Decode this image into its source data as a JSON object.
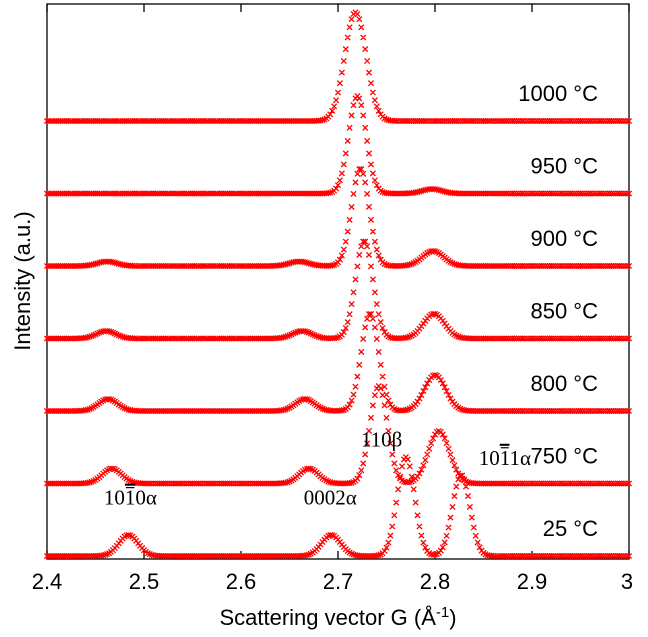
{
  "chart_data": {
    "type": "line",
    "xlabel": "Scattering vector G (Å",
    "xlabel_sup": "-1",
    "xlabel_end": ")",
    "ylabel": "Intensity (a.u.)",
    "xlim": [
      2.4,
      3.0
    ],
    "xticks": [
      "2.4",
      "2.5",
      "2.6",
      "2.7",
      "2.8",
      "2.9",
      "3"
    ],
    "grid": false,
    "marker_color": "#ff0000",
    "series": [
      {
        "name": "1000 °C",
        "baseline": 6,
        "peaks": [
          [
            2.718,
            1.45,
            0.011
          ]
        ]
      },
      {
        "name": "950 °C",
        "baseline": 5,
        "peaks": [
          [
            2.72,
            1.3,
            0.009
          ],
          [
            2.797,
            0.06,
            0.01
          ]
        ]
      },
      {
        "name": "900 °C",
        "baseline": 4,
        "peaks": [
          [
            2.462,
            0.06,
            0.01
          ],
          [
            2.66,
            0.06,
            0.01
          ],
          [
            2.723,
            1.3,
            0.009
          ],
          [
            2.798,
            0.2,
            0.011
          ]
        ]
      },
      {
        "name": "850 °C",
        "baseline": 3,
        "peaks": [
          [
            2.461,
            0.1,
            0.01
          ],
          [
            2.663,
            0.1,
            0.01
          ],
          [
            2.727,
            1.3,
            0.009
          ],
          [
            2.799,
            0.33,
            0.011
          ]
        ]
      },
      {
        "name": "800 °C",
        "baseline": 2,
        "peaks": [
          [
            2.463,
            0.16,
            0.01
          ],
          [
            2.666,
            0.16,
            0.01
          ],
          [
            2.733,
            1.3,
            0.009
          ],
          [
            2.8,
            0.48,
            0.011
          ]
        ]
      },
      {
        "name": "750 °C",
        "baseline": 1,
        "peaks": [
          [
            2.467,
            0.2,
            0.01
          ],
          [
            2.67,
            0.2,
            0.01
          ],
          [
            2.742,
            1.3,
            0.009
          ],
          [
            2.804,
            0.7,
            0.011
          ]
        ]
      },
      {
        "name": "25 °C",
        "baseline": 0,
        "peaks": [
          [
            2.484,
            0.28,
            0.01
          ],
          [
            2.693,
            0.28,
            0.01
          ],
          [
            2.77,
            1.32,
            0.009
          ],
          [
            2.827,
            1.08,
            0.009
          ]
        ]
      }
    ],
    "annotations": [
      {
        "text": "10̅1̅0̅α",
        "main": "10",
        "bar": "1",
        "rest": "0α",
        "anchor_x": 2.486,
        "anchor_level": 0.75
      },
      {
        "main": "0002α",
        "bar": "",
        "rest": "",
        "anchor_x": 2.692,
        "anchor_level": 0.75
      },
      {
        "main": "110β",
        "bar": "",
        "rest": "",
        "anchor_x": 2.745,
        "anchor_level": 1.55
      },
      {
        "main": "10",
        "bar": "1",
        "rest": "1α",
        "anchor_x": 2.872,
        "anchor_level": 1.3
      }
    ]
  }
}
